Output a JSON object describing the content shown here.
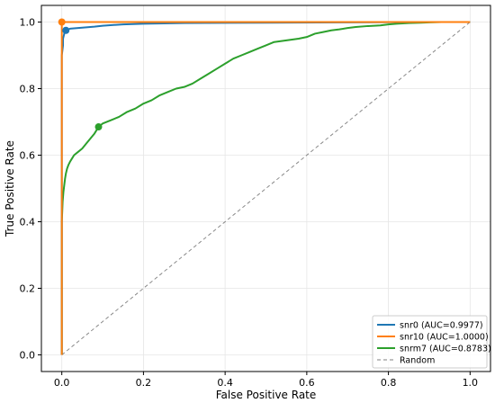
{
  "chart_data": {
    "type": "line",
    "xlabel": "False Positive Rate",
    "ylabel": "True Positive Rate",
    "xlim": [
      -0.05,
      1.05
    ],
    "ylim": [
      -0.05,
      1.05
    ],
    "x_ticks": [
      0.0,
      0.2,
      0.4,
      0.6,
      0.8,
      1.0
    ],
    "y_ticks": [
      0.0,
      0.2,
      0.4,
      0.6,
      0.8,
      1.0
    ],
    "x_tick_labels": [
      "0.0",
      "0.2",
      "0.4",
      "0.6",
      "0.8",
      "1.0"
    ],
    "y_tick_labels": [
      "0.0",
      "0.2",
      "0.4",
      "0.6",
      "0.8",
      "1.0"
    ],
    "grid": true,
    "legend_position": "lower-right",
    "series": [
      {
        "name": "snr0 (AUC=0.9977)",
        "color": "#1f77b4",
        "x": [
          0,
          0,
          0.003,
          0.003,
          0.006,
          0.008,
          0.01,
          0.015,
          0.02,
          0.04,
          0.06,
          0.08,
          0.1,
          0.15,
          0.2,
          0.3,
          0.5,
          0.7,
          0.9,
          1.0
        ],
        "y": [
          0,
          0.9,
          0.93,
          0.95,
          0.965,
          0.972,
          0.975,
          0.978,
          0.98,
          0.982,
          0.984,
          0.986,
          0.989,
          0.993,
          0.995,
          0.997,
          0.998,
          0.999,
          1.0,
          1.0
        ],
        "marker": {
          "x": 0.01,
          "y": 0.975
        }
      },
      {
        "name": "snr10 (AUC=1.0000)",
        "color": "#ff7f0e",
        "x": [
          0,
          0,
          0.33,
          0.6,
          0.8,
          1.0
        ],
        "y": [
          0,
          1.0,
          1.0,
          1.0,
          1.0,
          1.0
        ],
        "marker": {
          "x": 0.0,
          "y": 1.0
        }
      },
      {
        "name": "snrm7 (AUC=0.8783)",
        "color": "#2ca02c",
        "x": [
          0,
          0,
          0.001,
          0.002,
          0.004,
          0.006,
          0.008,
          0.01,
          0.013,
          0.016,
          0.02,
          0.025,
          0.03,
          0.04,
          0.05,
          0.06,
          0.07,
          0.08,
          0.09,
          0.1,
          0.12,
          0.14,
          0.16,
          0.18,
          0.2,
          0.22,
          0.24,
          0.26,
          0.28,
          0.3,
          0.32,
          0.34,
          0.36,
          0.38,
          0.4,
          0.42,
          0.44,
          0.46,
          0.48,
          0.5,
          0.52,
          0.55,
          0.58,
          0.6,
          0.62,
          0.64,
          0.66,
          0.68,
          0.7,
          0.72,
          0.75,
          0.78,
          0.8,
          0.82,
          0.85,
          0.88,
          0.9,
          0.93,
          0.96,
          1.0
        ],
        "y": [
          0,
          0.4,
          0.43,
          0.46,
          0.49,
          0.51,
          0.53,
          0.545,
          0.56,
          0.57,
          0.58,
          0.59,
          0.6,
          0.61,
          0.62,
          0.635,
          0.65,
          0.665,
          0.685,
          0.695,
          0.705,
          0.715,
          0.73,
          0.74,
          0.755,
          0.765,
          0.78,
          0.79,
          0.8,
          0.805,
          0.815,
          0.83,
          0.845,
          0.86,
          0.875,
          0.89,
          0.9,
          0.91,
          0.92,
          0.93,
          0.94,
          0.945,
          0.95,
          0.955,
          0.965,
          0.97,
          0.975,
          0.978,
          0.982,
          0.985,
          0.988,
          0.99,
          0.993,
          0.995,
          0.997,
          0.998,
          0.999,
          1.0,
          1.0,
          1.0
        ],
        "marker": {
          "x": 0.09,
          "y": 0.685
        }
      },
      {
        "name": "Random",
        "color": "#7f7f7f",
        "dashed": true,
        "x": [
          0,
          1
        ],
        "y": [
          0,
          1
        ]
      }
    ]
  }
}
